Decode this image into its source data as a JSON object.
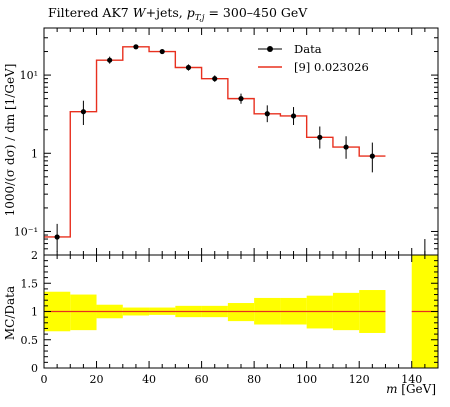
{
  "chart_data": {
    "type": "line",
    "title": "Filtered AK7 W+jets, p_T,j = 300–450 GeV",
    "xlabel": "m [GeV]",
    "ylabel_top": "1000/(σ dσ) / dm [1/GeV]",
    "ylabel_bottom": "MC/Data",
    "xlim": [
      0,
      150
    ],
    "ylim_top": [
      0.05,
      40
    ],
    "yscale_top": "log",
    "ylim_bottom": [
      0,
      2
    ],
    "x_ticks": [
      "0",
      "20",
      "40",
      "60",
      "80",
      "100",
      "120",
      "140"
    ],
    "y_ticks_top": [
      "10⁻¹",
      "1",
      "10¹"
    ],
    "y_ticks_bottom": [
      "0",
      "0.5",
      "1",
      "1.5",
      "2"
    ],
    "legend_position": "top-right",
    "data_series": {
      "name": "Data",
      "x": [
        5,
        15,
        25,
        35,
        45,
        55,
        65,
        75,
        85,
        95,
        105,
        115,
        125,
        145
      ],
      "y": [
        0.085,
        3.4,
        15.5,
        23.0,
        20.0,
        12.5,
        9.0,
        5.0,
        3.2,
        3.0,
        1.6,
        1.2,
        0.92,
        0.03
      ],
      "yerr_low": [
        0.03,
        1.1,
        1.5,
        1.2,
        1.3,
        1.1,
        0.8,
        0.7,
        0.7,
        0.7,
        0.45,
        0.35,
        0.35,
        0.0
      ],
      "yerr_high": [
        0.04,
        1.3,
        1.7,
        1.3,
        1.4,
        1.2,
        0.9,
        0.8,
        0.9,
        0.9,
        0.6,
        0.45,
        0.45,
        0.05
      ]
    },
    "mc_series": {
      "name": "[9] 0.023026",
      "color": "#e8301f",
      "bin_edges": [
        0,
        10,
        20,
        30,
        40,
        50,
        60,
        70,
        80,
        90,
        100,
        110,
        120,
        130
      ],
      "values": [
        0.085,
        3.4,
        15.5,
        23.0,
        20.0,
        12.5,
        9.0,
        5.0,
        3.2,
        3.0,
        1.6,
        1.2,
        0.92
      ]
    },
    "ratio_band": {
      "color": "#ffff00",
      "bin_edges": [
        0,
        10,
        20,
        30,
        40,
        50,
        60,
        70,
        80,
        90,
        100,
        110,
        120,
        130,
        140,
        150
      ],
      "low": [
        0.65,
        0.67,
        0.88,
        0.93,
        0.94,
        0.9,
        0.9,
        0.83,
        0.77,
        0.77,
        0.7,
        0.67,
        0.62,
        null,
        0.0
      ],
      "high": [
        1.35,
        1.3,
        1.12,
        1.07,
        1.07,
        1.1,
        1.1,
        1.15,
        1.24,
        1.24,
        1.28,
        1.33,
        1.38,
        null,
        2.0
      ]
    },
    "ratio_line": {
      "value": 1.0,
      "color": "#e8301f"
    }
  }
}
